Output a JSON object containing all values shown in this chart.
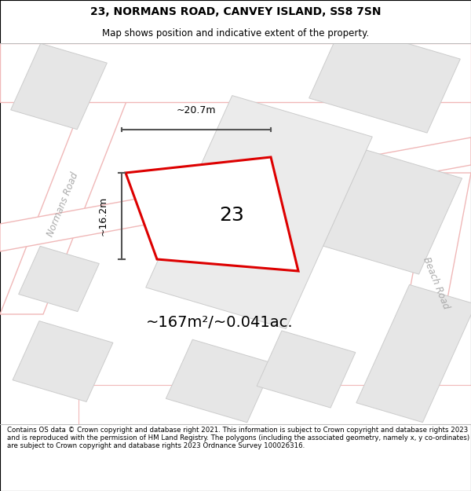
{
  "title_line1": "23, NORMANS ROAD, CANVEY ISLAND, SS8 7SN",
  "title_line2": "Map shows position and indicative extent of the property.",
  "footer_text": "Contains OS data © Crown copyright and database right 2021. This information is subject to Crown copyright and database rights 2023 and is reproduced with the permission of HM Land Registry. The polygons (including the associated geometry, namely x, y co-ordinates) are subject to Crown copyright and database rights 2023 Ordnance Survey 100026316.",
  "area_label": "~167m²/~0.041ac.",
  "number_label": "23",
  "dim_width_label": "~20.7m",
  "dim_height_label": "~16.2m",
  "road_label_left": "Normans Road",
  "road_label_right": "Beach Road",
  "plot_outline": "#dd0000",
  "dim_line_color": "#555555",
  "road_color": "#f0b8b8",
  "bld_fc": "#e6e6e6",
  "bld_ec": "#cccccc",
  "parcel_fc": "#ebebeb",
  "parcel_ec": "#cccccc"
}
